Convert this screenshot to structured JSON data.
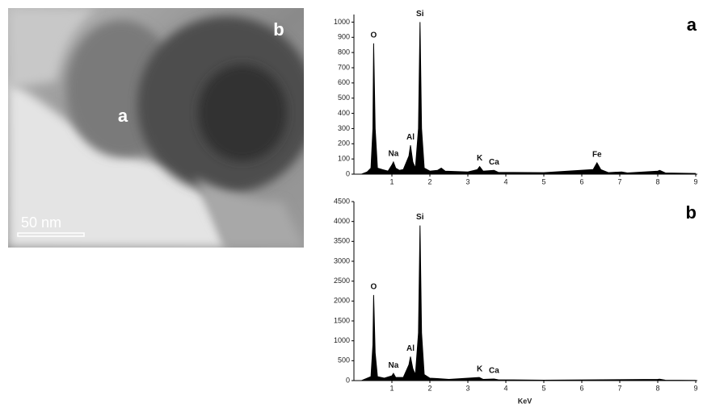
{
  "image": {
    "labels": [
      "a",
      "b"
    ],
    "scale_bar": "50 nm"
  },
  "chart_data": [
    {
      "type": "line",
      "panel_label": "a",
      "color": "#000000",
      "xlim": [
        0,
        9
      ],
      "xticks": [
        1,
        2,
        3,
        4,
        5,
        6,
        7,
        8,
        9
      ],
      "ylim": [
        0,
        1050
      ],
      "yticks": [
        0,
        100,
        200,
        300,
        400,
        500,
        600,
        700,
        800,
        900,
        1000
      ],
      "x": [
        0.2,
        0.35,
        0.45,
        0.5,
        0.52,
        0.56,
        0.62,
        0.75,
        0.9,
        1.0,
        1.04,
        1.1,
        1.2,
        1.3,
        1.45,
        1.49,
        1.55,
        1.62,
        1.7,
        1.74,
        1.78,
        1.85,
        2.0,
        2.2,
        2.3,
        2.4,
        3.0,
        3.25,
        3.31,
        3.4,
        3.69,
        3.8,
        5.0,
        6.3,
        6.4,
        6.5,
        6.7,
        7.05,
        7.2,
        8.0,
        8.05,
        8.2,
        9.0
      ],
      "values": [
        0,
        15,
        40,
        300,
        860,
        300,
        40,
        30,
        20,
        60,
        80,
        40,
        25,
        30,
        120,
        190,
        80,
        40,
        300,
        1000,
        300,
        40,
        20,
        25,
        40,
        20,
        15,
        30,
        50,
        20,
        25,
        12,
        10,
        30,
        75,
        30,
        10,
        15,
        8,
        20,
        25,
        8,
        5
      ],
      "peaks": [
        {
          "label": "O",
          "x": 0.52,
          "y": 860
        },
        {
          "label": "Na",
          "x": 1.04,
          "y": 80
        },
        {
          "label": "Al",
          "x": 1.49,
          "y": 190
        },
        {
          "label": "Si",
          "x": 1.74,
          "y": 1000
        },
        {
          "label": "K",
          "x": 3.31,
          "y": 50
        },
        {
          "label": "Ca",
          "x": 3.69,
          "y": 25
        },
        {
          "label": "Fe",
          "x": 6.4,
          "y": 75
        }
      ]
    },
    {
      "type": "line",
      "panel_label": "b",
      "color": "#000000",
      "x_label": "KeV",
      "xlim": [
        0,
        9
      ],
      "xticks": [
        1,
        2,
        3,
        4,
        5,
        6,
        7,
        8,
        9
      ],
      "ylim": [
        0,
        4500
      ],
      "yticks": [
        0,
        500,
        1000,
        1500,
        2000,
        2500,
        3000,
        3500,
        4000,
        4500
      ],
      "x": [
        0.2,
        0.45,
        0.5,
        0.52,
        0.56,
        0.62,
        0.8,
        1.0,
        1.04,
        1.1,
        1.3,
        1.45,
        1.49,
        1.55,
        1.62,
        1.7,
        1.74,
        1.78,
        1.85,
        2.0,
        2.2,
        2.5,
        3.3,
        3.4,
        3.69,
        3.8,
        5.0,
        8.0,
        8.05,
        8.2,
        9.0
      ],
      "values": [
        0,
        100,
        900,
        2150,
        700,
        100,
        60,
        120,
        180,
        80,
        80,
        400,
        600,
        300,
        150,
        1200,
        3900,
        1200,
        150,
        60,
        50,
        30,
        80,
        30,
        40,
        20,
        10,
        30,
        35,
        10,
        5
      ],
      "peaks": [
        {
          "label": "O",
          "x": 0.52,
          "y": 2150
        },
        {
          "label": "Na",
          "x": 1.04,
          "y": 180
        },
        {
          "label": "Al",
          "x": 1.49,
          "y": 600
        },
        {
          "label": "Si",
          "x": 1.74,
          "y": 3900
        },
        {
          "label": "K",
          "x": 3.31,
          "y": 80
        },
        {
          "label": "Ca",
          "x": 3.69,
          "y": 40
        }
      ]
    }
  ]
}
